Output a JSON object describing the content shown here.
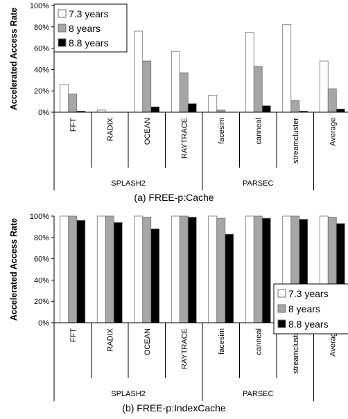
{
  "chart_data": [
    {
      "type": "bar",
      "title": "",
      "caption": "(a) FREE-p:Cache",
      "ylabel": "Accelerated Access Rate",
      "xlabel": "",
      "ylim": [
        0,
        100
      ],
      "yticks": [
        0,
        20,
        40,
        60,
        80,
        100
      ],
      "ytick_labels": [
        "0%",
        "20%",
        "40%",
        "60%",
        "80%",
        "100%"
      ],
      "legend_position": "top-left",
      "grid": false,
      "categories": [
        "FFT",
        "RADIX",
        "OCEAN",
        "RAYTRACE",
        "facesim",
        "canneal",
        "streamcluster",
        "Average"
      ],
      "groups": [
        {
          "label": "SPLASH2",
          "span": [
            0,
            3
          ]
        },
        {
          "label": "PARSEC",
          "span": [
            4,
            6
          ]
        }
      ],
      "series": [
        {
          "name": "7.3 years",
          "color": "#ffffff",
          "values": [
            26,
            2,
            76,
            57,
            16,
            75,
            82,
            48
          ]
        },
        {
          "name": "8 years",
          "color": "#a6a6a6",
          "values": [
            17,
            0,
            48,
            37,
            2,
            43,
            11,
            22
          ]
        },
        {
          "name": "8.8 years",
          "color": "#000000",
          "values": [
            1,
            0,
            5,
            8,
            0,
            6,
            1,
            3
          ]
        }
      ]
    },
    {
      "type": "bar",
      "title": "",
      "caption": "(b) FREE-p:IndexCache",
      "ylabel": "Accelerated Access Rate",
      "xlabel": "",
      "ylim": [
        0,
        100
      ],
      "yticks": [
        0,
        20,
        40,
        60,
        80,
        100
      ],
      "ytick_labels": [
        "0%",
        "20%",
        "40%",
        "60%",
        "80%",
        "100%"
      ],
      "legend_position": "bottom-right",
      "grid": false,
      "categories": [
        "FFT",
        "RADIX",
        "OCEAN",
        "RAYTRACE",
        "facesim",
        "canneal",
        "streamcluster",
        "Average"
      ],
      "groups": [
        {
          "label": "SPLASH2",
          "span": [
            0,
            3
          ]
        },
        {
          "label": "PARSEC",
          "span": [
            4,
            6
          ]
        }
      ],
      "series": [
        {
          "name": "7.3 years",
          "color": "#ffffff",
          "values": [
            100,
            100,
            100,
            100,
            100,
            100,
            100,
            100
          ]
        },
        {
          "name": "8 years",
          "color": "#a6a6a6",
          "values": [
            100,
            100,
            99,
            100,
            98,
            100,
            100,
            99
          ]
        },
        {
          "name": "8.8 years",
          "color": "#000000",
          "values": [
            96,
            94,
            88,
            99,
            83,
            98,
            97,
            93
          ]
        }
      ]
    }
  ]
}
